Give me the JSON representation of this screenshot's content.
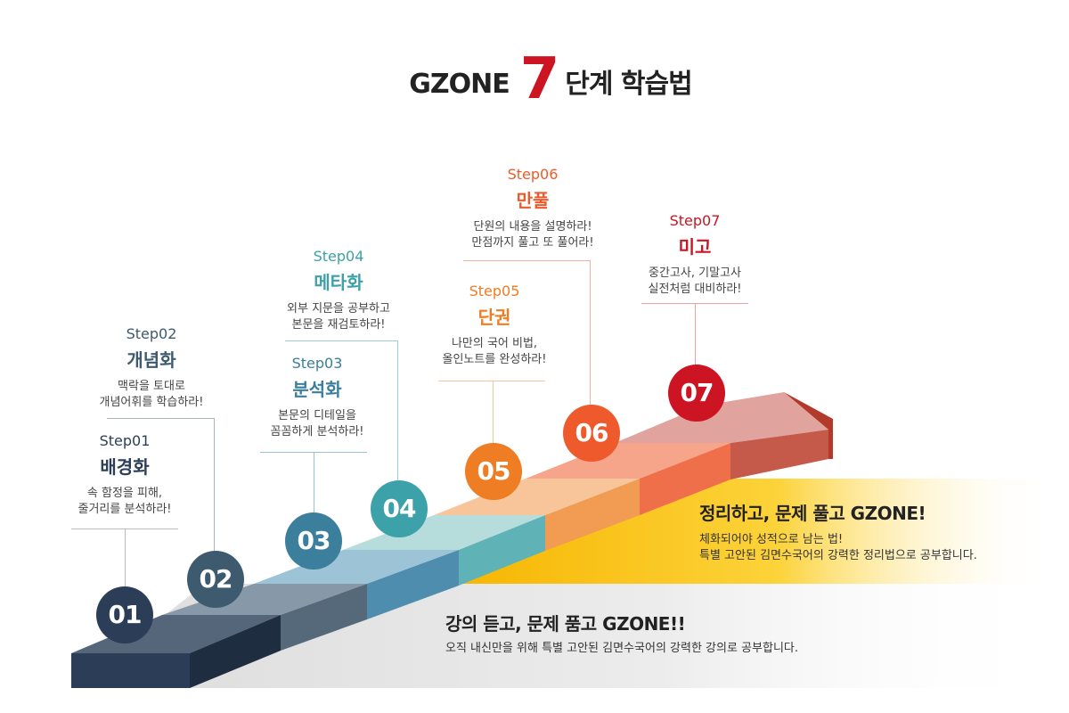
{
  "title": {
    "brand": "GZONE",
    "number": "7",
    "rest": "단계 학습법"
  },
  "steps": [
    {
      "num": "01",
      "step": "Step01",
      "name": "배경화",
      "desc": "속 함정을 피해,\n줄거리를 분석하라!",
      "color": "#2c3e57"
    },
    {
      "num": "02",
      "step": "Step02",
      "name": "개념화",
      "desc": "맥락을 토대로\n개념어휘를 학습하라!",
      "color": "#3d5a6e"
    },
    {
      "num": "03",
      "step": "Step03",
      "name": "분석화",
      "desc": "본문의 디테일을\n꼼꼼하게 분석하라!",
      "color": "#3b7f9c"
    },
    {
      "num": "04",
      "step": "Step04",
      "name": "메타화",
      "desc": "외부 지문을 공부하고\n본문을 재검토하라!",
      "color": "#3ca1a8"
    },
    {
      "num": "05",
      "step": "Step05",
      "name": "단권",
      "desc": "나만의 국어 비법,\n올인노트를 완성하라!",
      "color": "#ee7d23"
    },
    {
      "num": "06",
      "step": "Step06",
      "name": "만풀",
      "desc": "단원의 내용을 설명하라!\n만점까지 풀고 또 풀어라!",
      "color": "#ef5a2c"
    },
    {
      "num": "07",
      "step": "Step07",
      "name": "미고",
      "desc": "중간고사, 기말고사\n실전처럼 대비하라!",
      "color": "#cc1422"
    }
  ],
  "caption_top": {
    "title": "정리하고, 문제 풀고 GZONE!",
    "desc": "체화되어야 성적으로 남는 법!\n특별 고안된 김면수국어의 강력한 정리법으로 공부합니다."
  },
  "caption_bottom": {
    "title": "강의 듣고, 문제 품고 GZONE!!",
    "desc": "오직 내신만을 위해 특별 고안된 김면수국어의 강력한 강의로 공부합니다."
  }
}
